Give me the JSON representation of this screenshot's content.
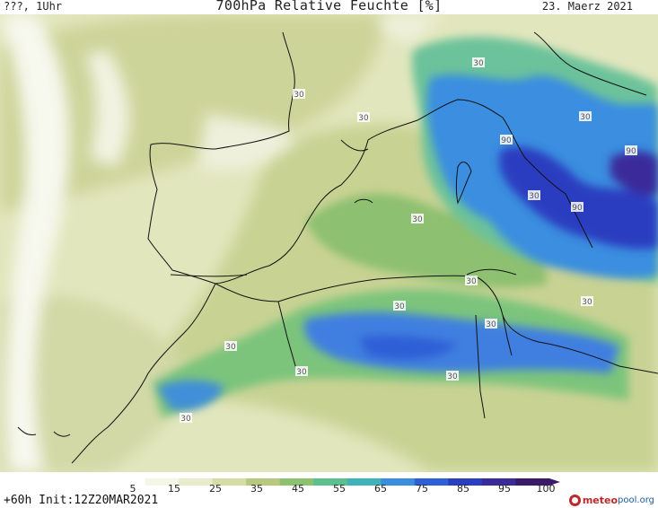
{
  "header": {
    "location_time": "???, 1Uhr",
    "title": "700hPa Relative Feuchte [%]",
    "date": "23. Maerz 2021"
  },
  "map": {
    "contour_labels": [
      "30",
      "30",
      "30",
      "30",
      "30",
      "90",
      "30",
      "90",
      "90",
      "30",
      "30",
      "30",
      "30",
      "30",
      "30",
      "30",
      "30"
    ]
  },
  "colorbar": {
    "ticks": [
      "5",
      "15",
      "25",
      "35",
      "45",
      "55",
      "65",
      "75",
      "85",
      "95",
      "100"
    ],
    "colors": [
      "#ffffff",
      "#f4f6e6",
      "#e9eccc",
      "#d6dca6",
      "#b9c87f",
      "#8dc06f",
      "#5cc08e",
      "#3fb3b8",
      "#3a8ee0",
      "#2d5fd6",
      "#2a3ec0",
      "#3a2a9a",
      "#3c1a6a"
    ]
  },
  "footer": {
    "forecast": "+60h Init:12Z20MAR2021",
    "brand_primary": "meteo",
    "brand_secondary": "pool.org"
  }
}
